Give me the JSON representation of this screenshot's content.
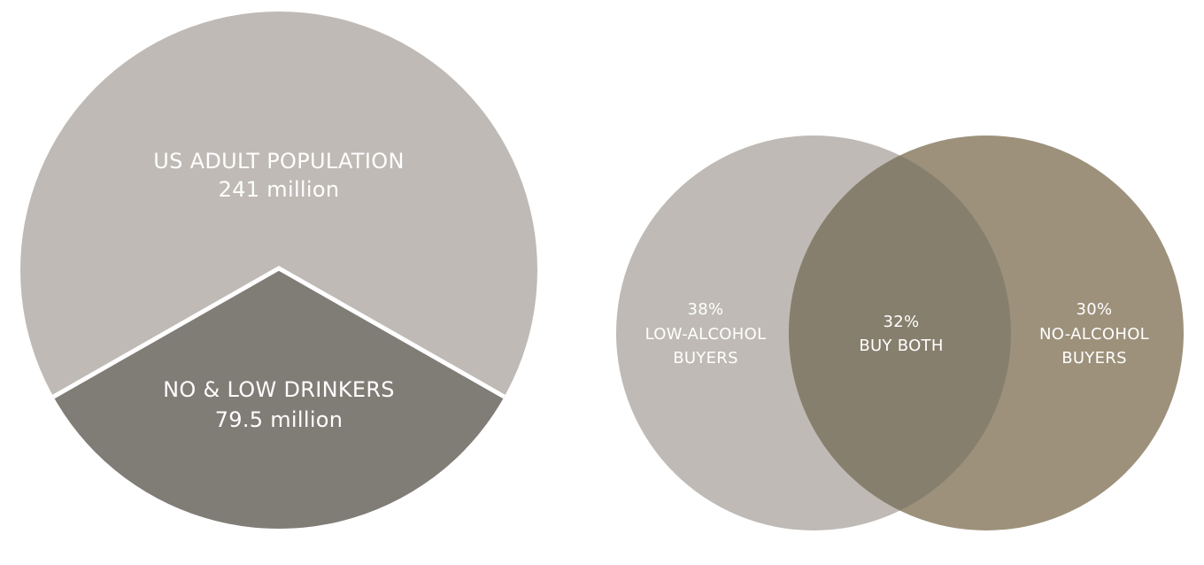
{
  "chart_data": [
    {
      "type": "pie",
      "slices": [
        {
          "label": "US ADULT POPULATION",
          "value_text": "241 million",
          "value": 241,
          "color": "#bfbab5"
        },
        {
          "label": "NO & LOW DRINKERS",
          "value_text": "79.5 million",
          "value": 79.5,
          "color": "#807c76"
        }
      ],
      "separator_color": "#ffffff"
    },
    {
      "type": "venn",
      "sets": [
        {
          "percent": "38%",
          "label_lines": [
            "LOW-ALCOHOL",
            "BUYERS"
          ],
          "value": 38,
          "color": "#bfbab5"
        },
        {
          "percent": "30%",
          "label_lines": [
            "NO-ALCOHOL",
            "BUYERS"
          ],
          "value": 30,
          "color": "#9d917b"
        }
      ],
      "intersection": {
        "percent": "32%",
        "label_lines": [
          "BUY BOTH"
        ],
        "value": 32,
        "color": "#877f6d"
      }
    }
  ]
}
